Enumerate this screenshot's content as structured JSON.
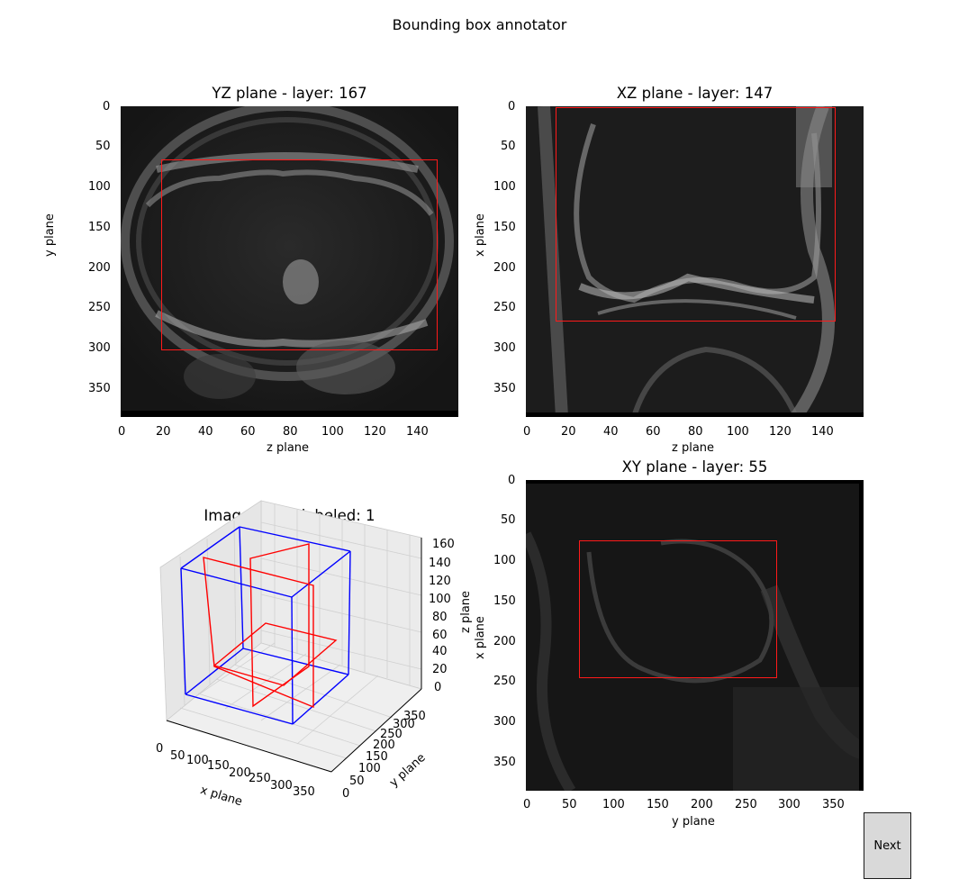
{
  "window": {
    "title": "Bounding box annotator"
  },
  "panels": {
    "yz": {
      "title": "YZ plane - layer: 167",
      "xlabel": "z plane",
      "ylabel": "y plane",
      "xticks": [
        "0",
        "20",
        "40",
        "60",
        "80",
        "100",
        "120",
        "140"
      ],
      "yticks": [
        "0",
        "50",
        "100",
        "150",
        "200",
        "250",
        "300",
        "350"
      ],
      "image_description_icon": "knee-mri-axial-slice",
      "bbox_color": "#ff0000"
    },
    "xz": {
      "title": "XZ plane - layer: 147",
      "xlabel": "z plane",
      "ylabel": "x plane",
      "xticks": [
        "0",
        "20",
        "40",
        "60",
        "80",
        "100",
        "120",
        "140"
      ],
      "yticks": [
        "0",
        "50",
        "100",
        "150",
        "200",
        "250",
        "300",
        "350"
      ],
      "image_description_icon": "knee-mri-coronal-slice",
      "bbox_color": "#ff0000"
    },
    "xy": {
      "title": "XY plane - layer: 55",
      "xlabel": "y plane",
      "ylabel": "x plane",
      "xticks": [
        "0",
        "50",
        "100",
        "150",
        "200",
        "250",
        "300",
        "350"
      ],
      "yticks": [
        "0",
        "50",
        "100",
        "150",
        "200",
        "250",
        "300",
        "350"
      ],
      "image_description_icon": "knee-mri-sagittal-slice",
      "bbox_color": "#ff0000"
    },
    "view3d": {
      "title": "Image being labeled: 1",
      "xlabel": "x plane",
      "ylabel": "y plane",
      "zlabel": "z plane",
      "xticks": [
        "0",
        "50",
        "100",
        "150",
        "200",
        "250",
        "300",
        "350"
      ],
      "yticks": [
        "0",
        "50",
        "100",
        "150",
        "200",
        "250",
        "300",
        "350"
      ],
      "zticks": [
        "0",
        "20",
        "40",
        "60",
        "80",
        "100",
        "120",
        "140",
        "160"
      ],
      "box_color": "#0000ff",
      "plane_color": "#ff0000"
    }
  },
  "controls": {
    "next_label": "Next"
  }
}
